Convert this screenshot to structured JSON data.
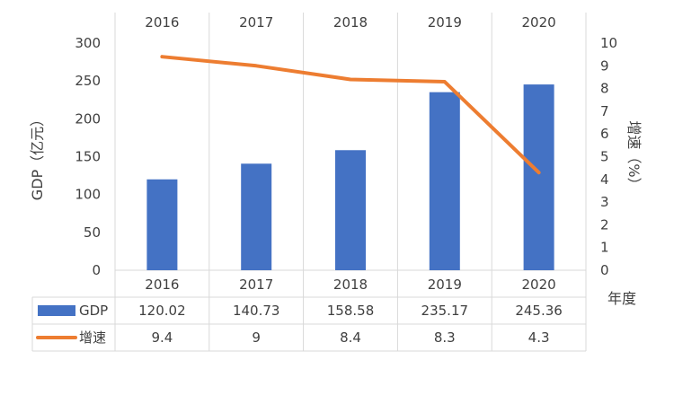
{
  "chart_data": {
    "type": "bar",
    "categories": [
      "2016",
      "2017",
      "2018",
      "2019",
      "2020"
    ],
    "series": [
      {
        "name": "GDP",
        "type": "bar",
        "axis": "left",
        "color": "#4472C4",
        "values": [
          120.02,
          140.73,
          158.58,
          235.17,
          245.36
        ]
      },
      {
        "name": "增速",
        "type": "line",
        "axis": "right",
        "color": "#ED7D31",
        "values": [
          9.4,
          9,
          8.4,
          8.3,
          4.3
        ]
      }
    ],
    "ylabel": "GDP（亿元）",
    "y2label": "增速（%）",
    "xlabel": "年度",
    "ylim": [
      0,
      300
    ],
    "y_ticks": [
      "0",
      "50",
      "100",
      "150",
      "200",
      "250",
      "300"
    ],
    "y2lim": [
      0,
      10
    ],
    "y2_ticks": [
      "0",
      "1",
      "2",
      "3",
      "4",
      "5",
      "6",
      "7",
      "8",
      "9",
      "10"
    ],
    "table": [
      {
        "name": "GDP",
        "values": [
          "120.02",
          "140.73",
          "158.58",
          "235.17",
          "245.36"
        ]
      },
      {
        "name": "增速",
        "values": [
          "9.4",
          "9",
          "8.4",
          "8.3",
          "4.3"
        ]
      }
    ],
    "grid": true
  }
}
